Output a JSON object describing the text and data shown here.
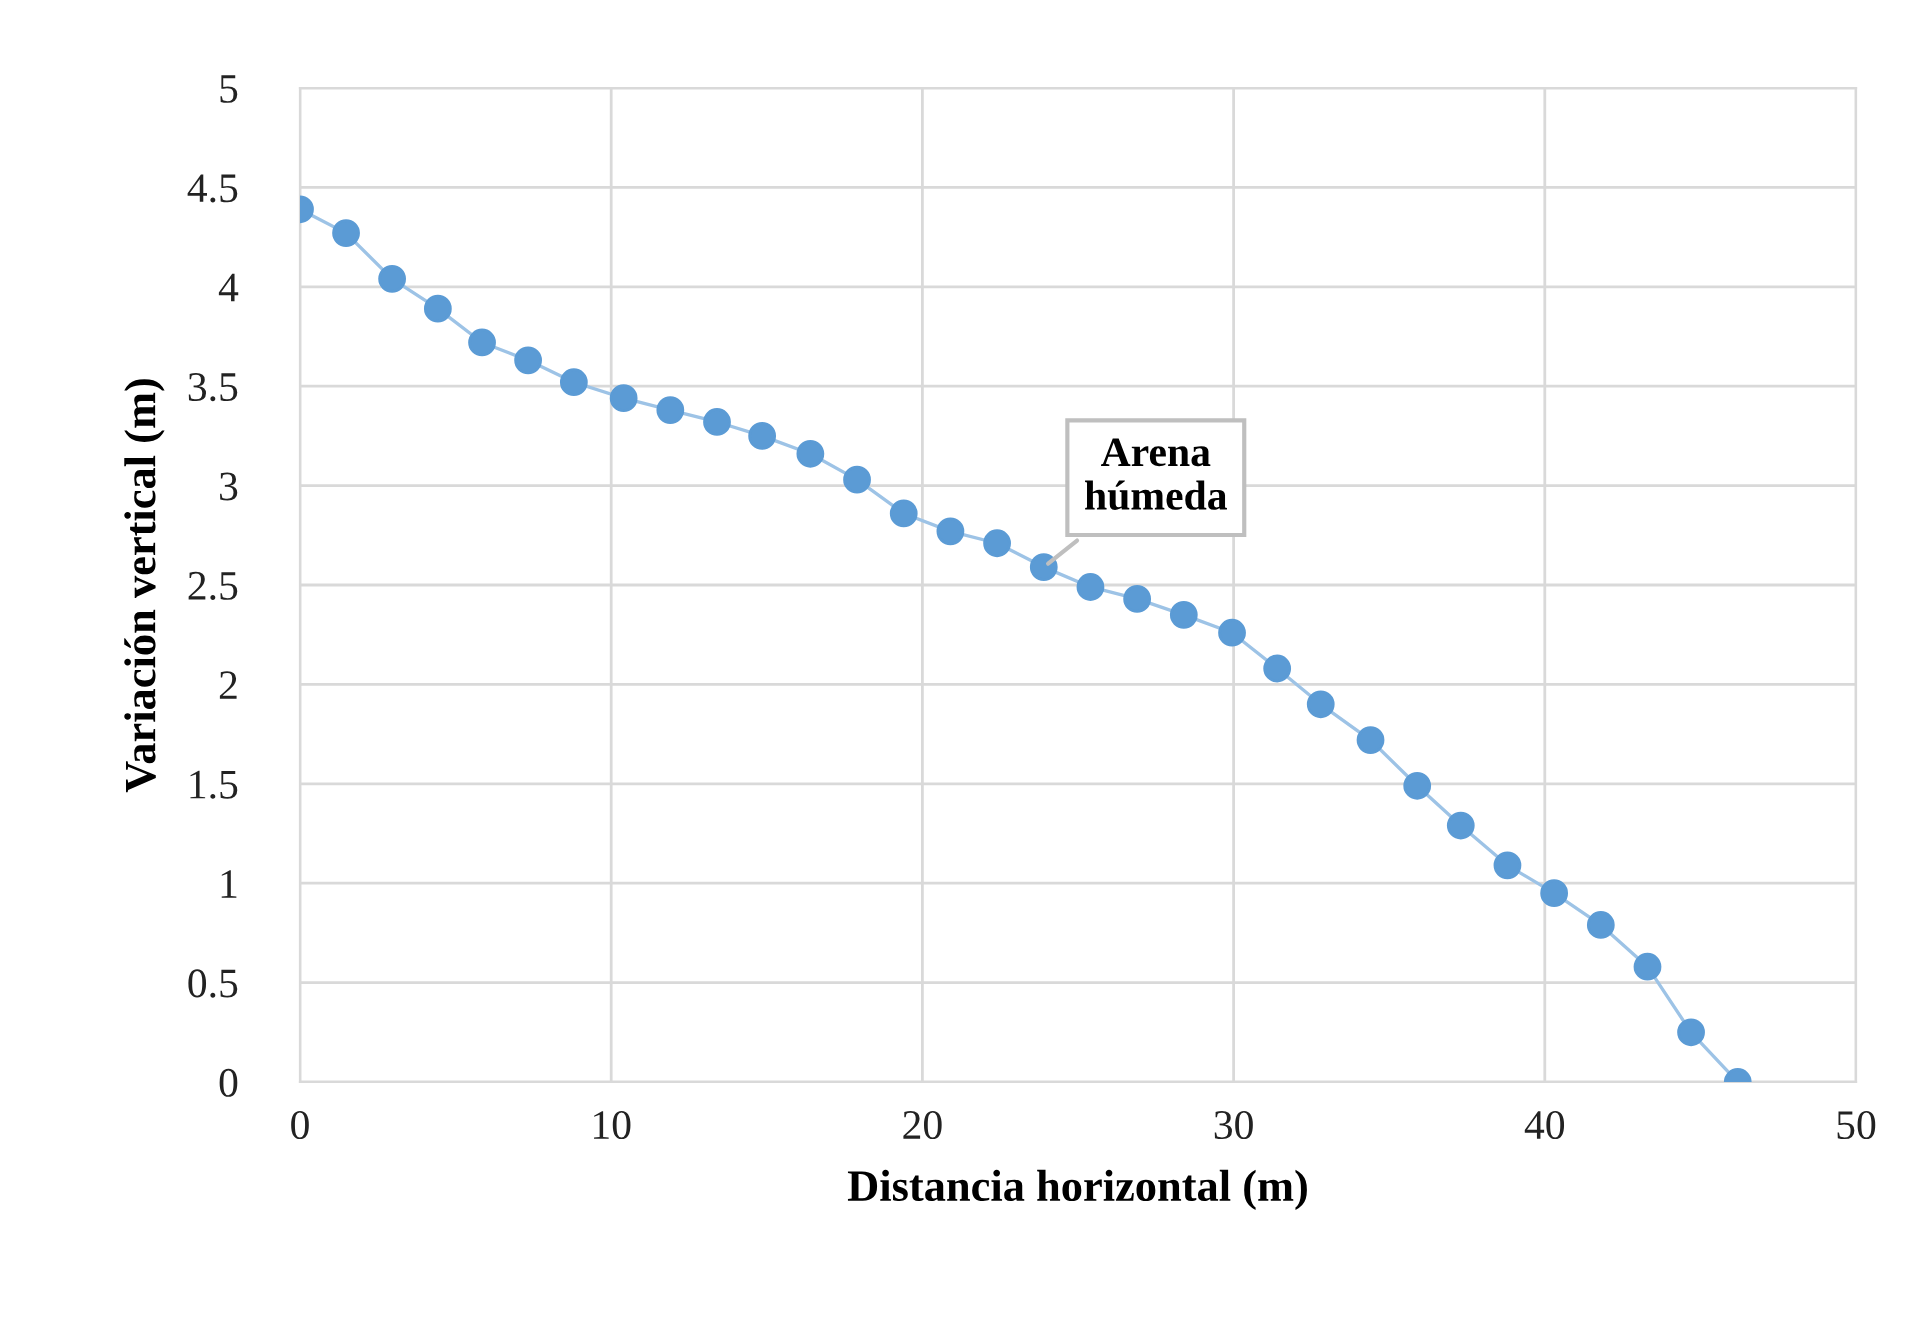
{
  "chart_data": {
    "type": "line",
    "xlabel": "Distancia horizontal (m)",
    "ylabel": "Variación vertical (m)",
    "x": [
      0,
      1.48,
      2.96,
      4.43,
      5.85,
      7.33,
      8.8,
      10.4,
      11.9,
      13.4,
      14.85,
      16.4,
      17.9,
      19.4,
      20.9,
      22.4,
      23.9,
      25.4,
      26.9,
      28.4,
      29.95,
      31.4,
      32.8,
      34.4,
      35.9,
      37.3,
      38.8,
      40.3,
      41.8,
      43.3,
      44.7,
      46.2
    ],
    "series": [
      {
        "color": "#5b9bd5",
        "values": [
          4.39,
          4.27,
          4.04,
          3.89,
          3.72,
          3.63,
          3.52,
          3.44,
          3.38,
          3.32,
          3.25,
          3.16,
          3.03,
          2.86,
          2.77,
          2.71,
          2.59,
          2.49,
          2.43,
          2.35,
          2.26,
          2.08,
          1.9,
          1.72,
          1.49,
          1.29,
          1.09,
          0.95,
          0.79,
          0.58,
          0.25,
          0.0
        ]
      }
    ],
    "annotations": [
      {
        "text": "Arena\nhúmeda",
        "x": 23.9,
        "y": 2.59
      }
    ],
    "xlim": [
      0,
      50
    ],
    "xticks": [
      0,
      10,
      20,
      30,
      40,
      50
    ],
    "ylim": [
      0,
      5
    ],
    "yticks": [
      0,
      0.5,
      1,
      1.5,
      2,
      2.5,
      3,
      3.5,
      4,
      4.5,
      5
    ],
    "grid": true,
    "marker": "circle",
    "line_style": "solid"
  }
}
